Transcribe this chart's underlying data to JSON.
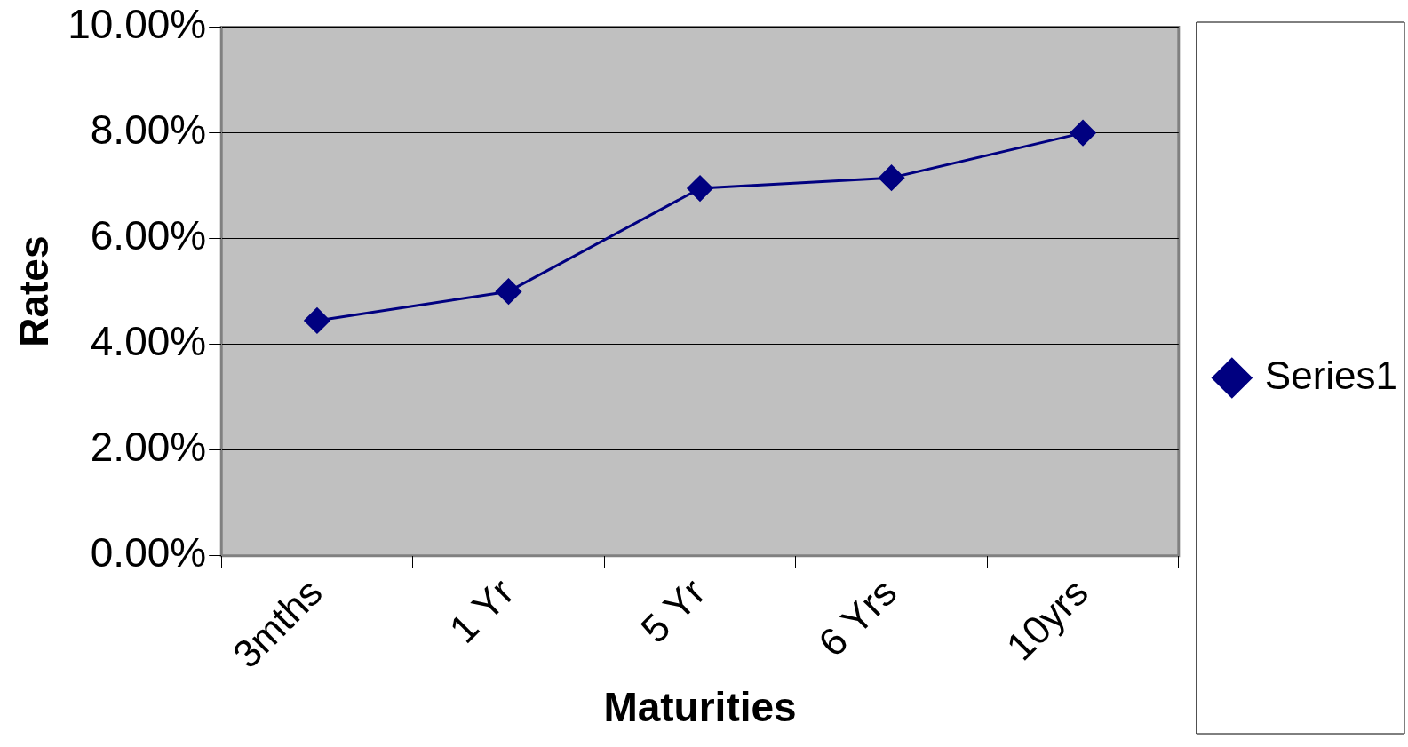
{
  "chart_data": {
    "type": "line",
    "xlabel": "Maturities",
    "ylabel": "Rates",
    "categories": [
      "3mths",
      "1 Yr",
      "5 Yr",
      "6 Yrs",
      "10yrs"
    ],
    "series": [
      {
        "name": "Series1",
        "color": "#000080",
        "values": [
          4.45,
          5.0,
          6.95,
          7.15,
          8.0
        ]
      }
    ],
    "ylim": [
      0,
      10
    ],
    "yticks": [
      {
        "value": 0,
        "label": "0.00%"
      },
      {
        "value": 2,
        "label": "2.00%"
      },
      {
        "value": 4,
        "label": "4.00%"
      },
      {
        "value": 6,
        "label": "6.00%"
      },
      {
        "value": 8,
        "label": "8.00%"
      },
      {
        "value": 10,
        "label": "10.00%"
      }
    ],
    "grid": "y",
    "legend": "right",
    "marker": "diamond",
    "line_style": "solid"
  }
}
